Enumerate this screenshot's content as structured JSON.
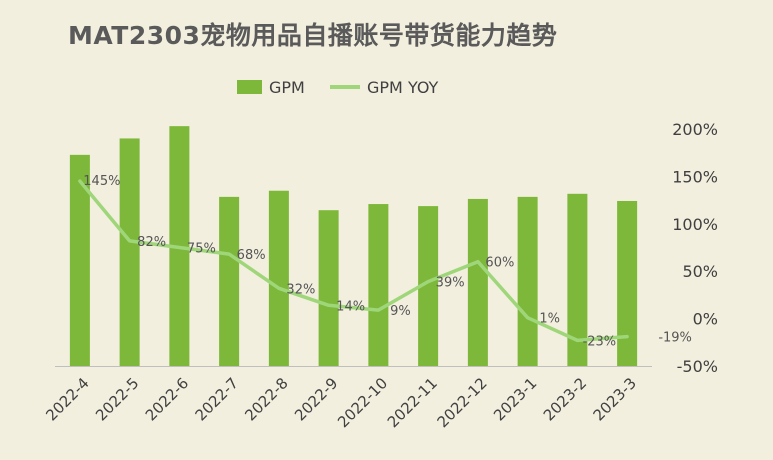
{
  "title": "MAT2303宠物用品自播账号带货能力趋势",
  "colors": {
    "bar": "#7db83a",
    "line": "#9fd67a",
    "text": "#404040",
    "axis": "#555555",
    "background": "#f2efdf"
  },
  "legend": {
    "bar_label": "GPM",
    "line_label": "GPM YOY"
  },
  "chart_data": {
    "type": "bar+line",
    "title": "MAT2303宠物用品自播账号带货能力趋势",
    "categories": [
      "2022-4",
      "2022-5",
      "2022-6",
      "2022-7",
      "2022-8",
      "2022-9",
      "2022-10",
      "2022-11",
      "2022-12",
      "2023-1",
      "2023-2",
      "2023-3"
    ],
    "series": [
      {
        "name": "GPM",
        "type": "bar",
        "axis": "left",
        "values": [
          206,
          222,
          234,
          165,
          171,
          152,
          158,
          156,
          163,
          165,
          168,
          161
        ]
      },
      {
        "name": "GPM YOY",
        "type": "line",
        "axis": "right",
        "values": [
          145,
          82,
          75,
          68,
          32,
          14,
          9,
          39,
          60,
          1,
          -23,
          -19
        ],
        "labels": [
          "145%",
          "82%",
          "75%",
          "68%",
          "32%",
          "14%",
          "9%",
          "39%",
          "60%",
          "1%",
          "-23%",
          "-19%"
        ]
      }
    ],
    "right_axis": {
      "ticks": [
        "200%",
        "150%",
        "100%",
        "50%",
        "0%",
        "-50%"
      ],
      "tick_values": [
        200,
        150,
        100,
        50,
        0,
        -50
      ],
      "ylim": [
        -50,
        200
      ]
    },
    "left_axis": {
      "visible": false,
      "ylim": [
        0,
        240
      ]
    },
    "legend_position": "top-center",
    "grid": false
  }
}
